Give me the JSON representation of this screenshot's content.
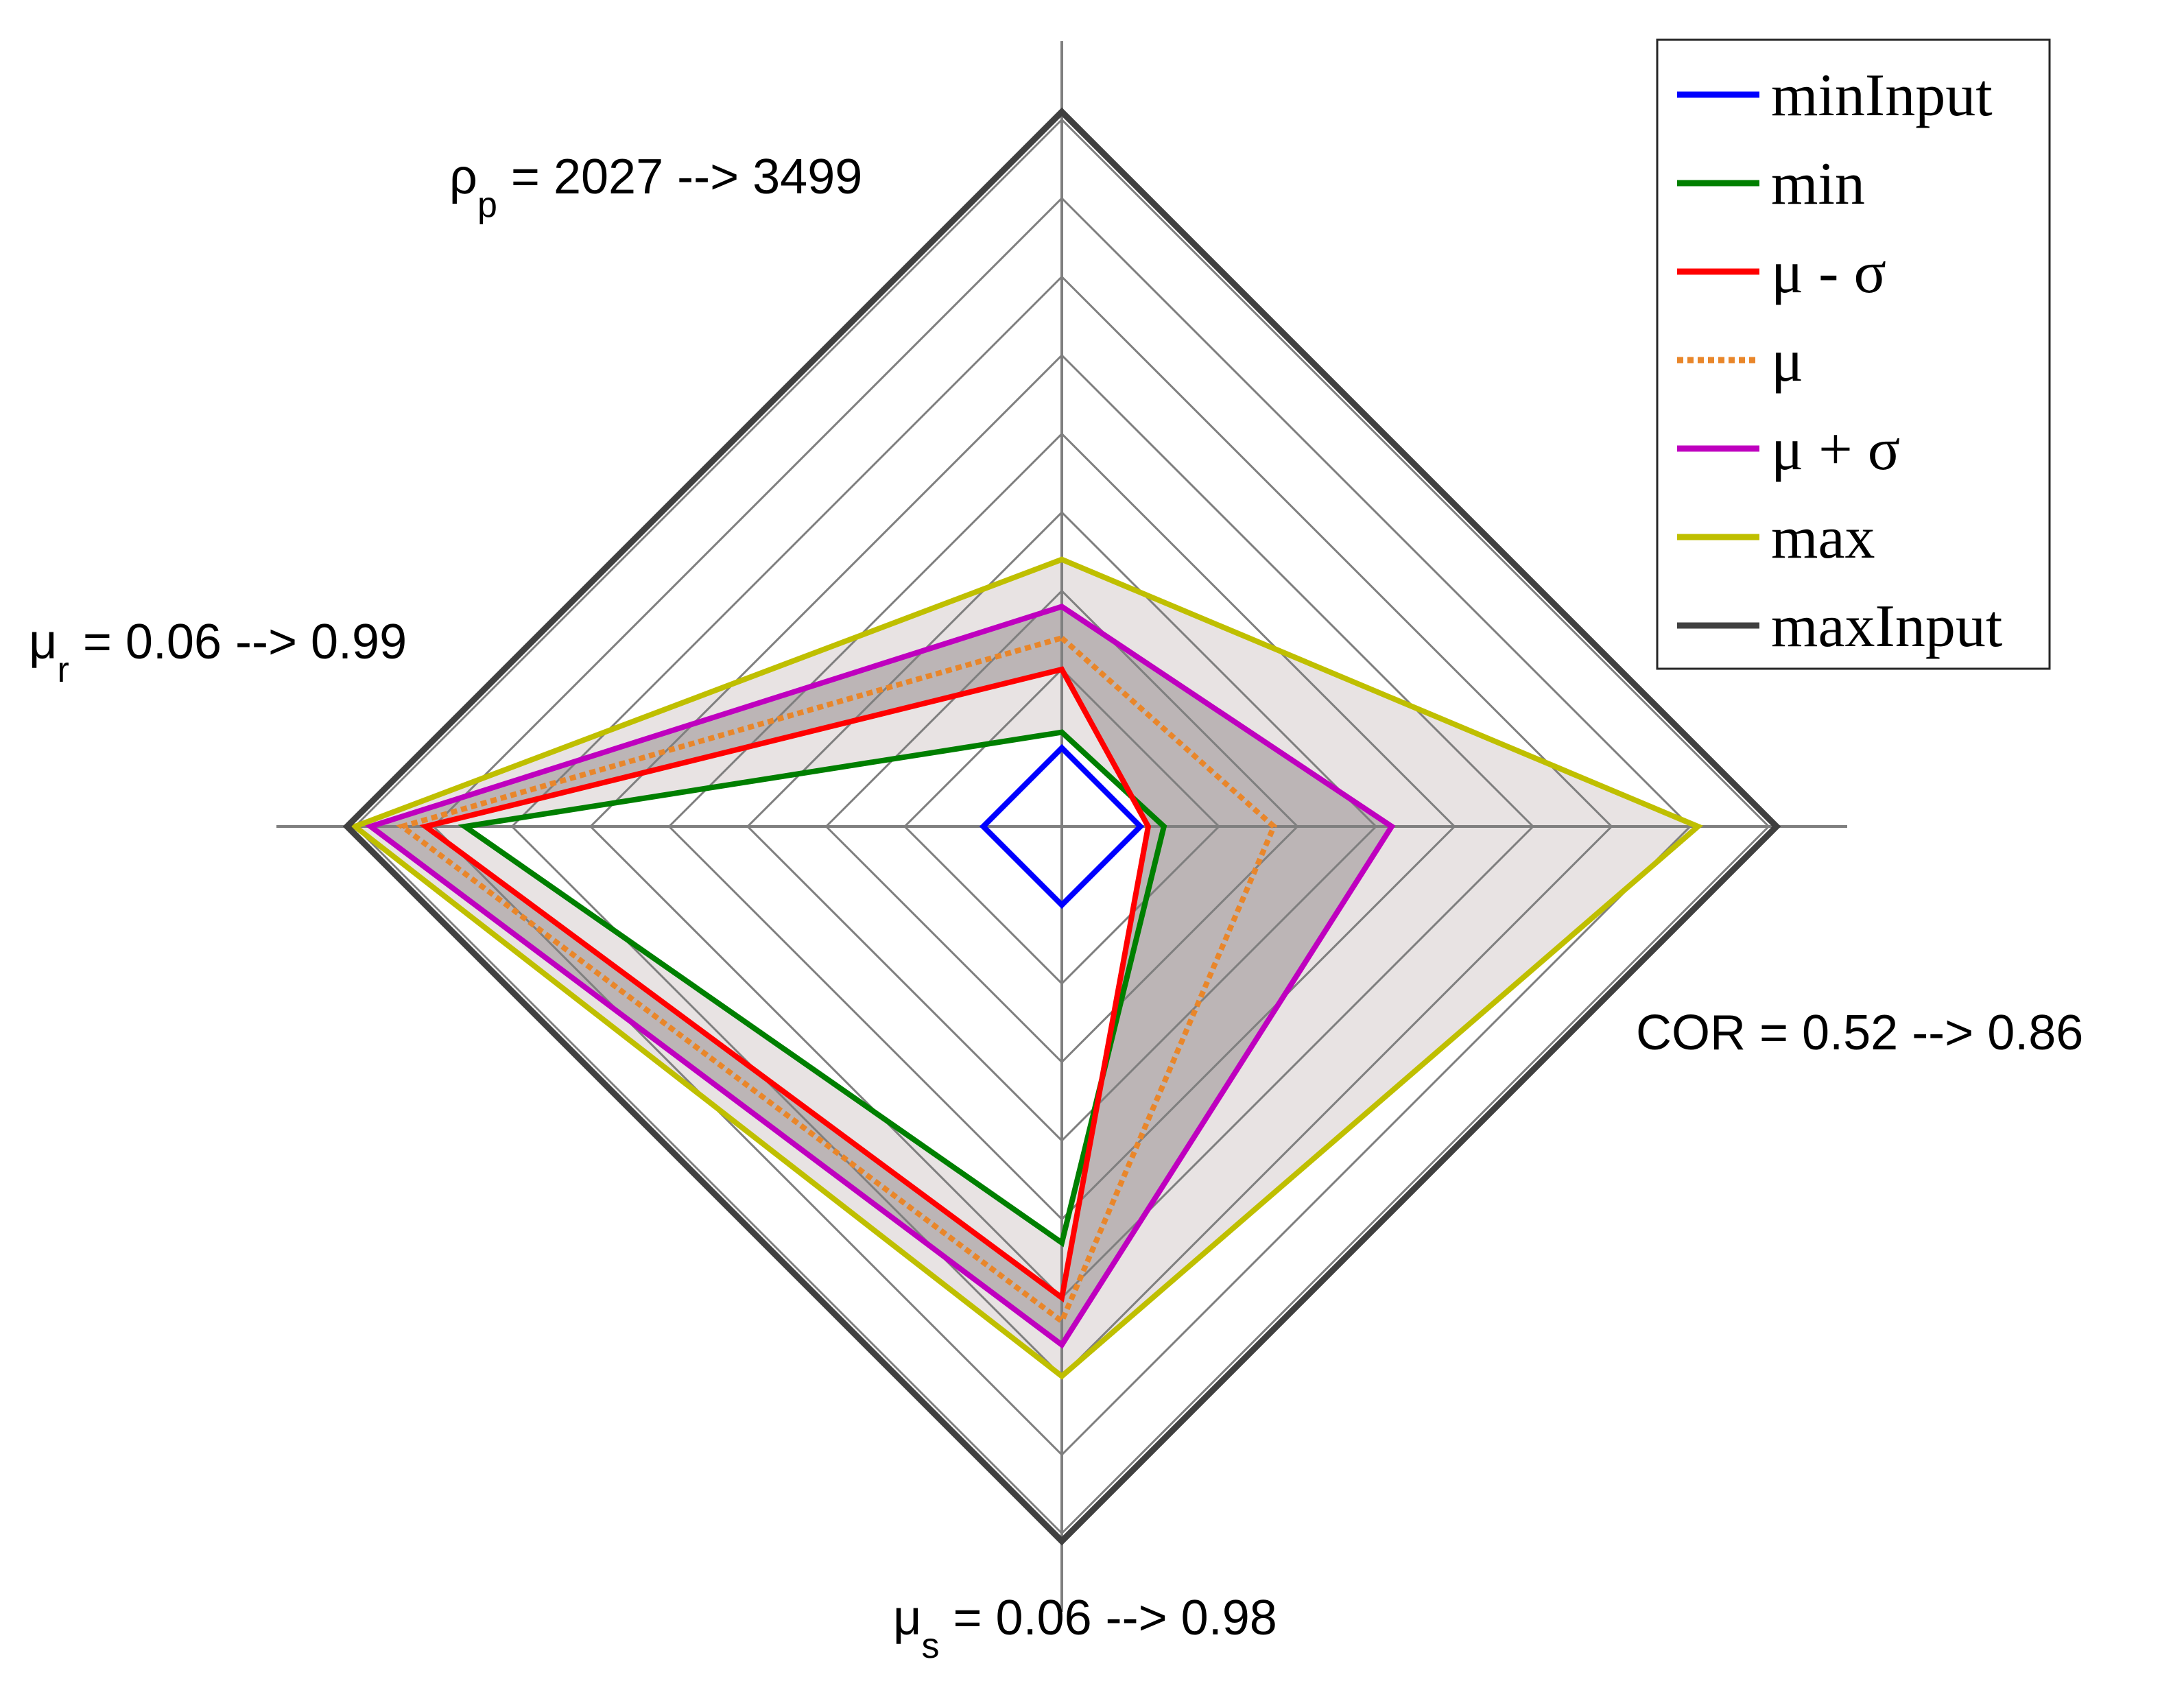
{
  "chart_data": {
    "type": "radar",
    "rings": 9,
    "axes": [
      {
        "direction": "top",
        "sym": "ρ",
        "sub": "p",
        "text": " = 2027 --> 3499"
      },
      {
        "direction": "right",
        "sym": "",
        "sub": "",
        "text": "COR = 0.52 --> 0.86"
      },
      {
        "direction": "bottom",
        "sym": "μ",
        "sub": "s",
        "text": " = 0.06 --> 0.98"
      },
      {
        "direction": "left",
        "sym": "μ",
        "sub": "r",
        "text": " = 0.06 --> 0.99"
      }
    ],
    "series": [
      {
        "name": "minInput",
        "color": "#0000ff",
        "dashed": false,
        "values": [
          0.1,
          0.1,
          0.1,
          0.1
        ]
      },
      {
        "name": "min",
        "color": "#007f00",
        "dashed": false,
        "values": [
          0.12,
          0.13,
          0.53,
          0.76
        ]
      },
      {
        "name": "μ - σ",
        "color": "#ff0000",
        "dashed": false,
        "values": [
          0.2,
          0.11,
          0.6,
          0.81
        ]
      },
      {
        "name": "μ",
        "color": "#e9862a",
        "dashed": true,
        "values": [
          0.24,
          0.27,
          0.63,
          0.84
        ]
      },
      {
        "name": "μ + σ",
        "color": "#bf00bf",
        "dashed": false,
        "values": [
          0.28,
          0.42,
          0.66,
          0.88
        ]
      },
      {
        "name": "max",
        "color": "#bfbf00",
        "dashed": false,
        "values": [
          0.34,
          0.81,
          0.7,
          0.9
        ]
      },
      {
        "name": "maxInput",
        "color": "#404040",
        "dashed": false,
        "values": [
          0.91,
          0.91,
          0.91,
          0.91
        ]
      }
    ],
    "bands": [
      {
        "from": "min",
        "to": "max",
        "color": "#e8e3e3"
      },
      {
        "from": "μ - σ",
        "to": "μ + σ",
        "color": "#bcb5b6"
      }
    ],
    "legend": "top-right",
    "grid": true
  }
}
